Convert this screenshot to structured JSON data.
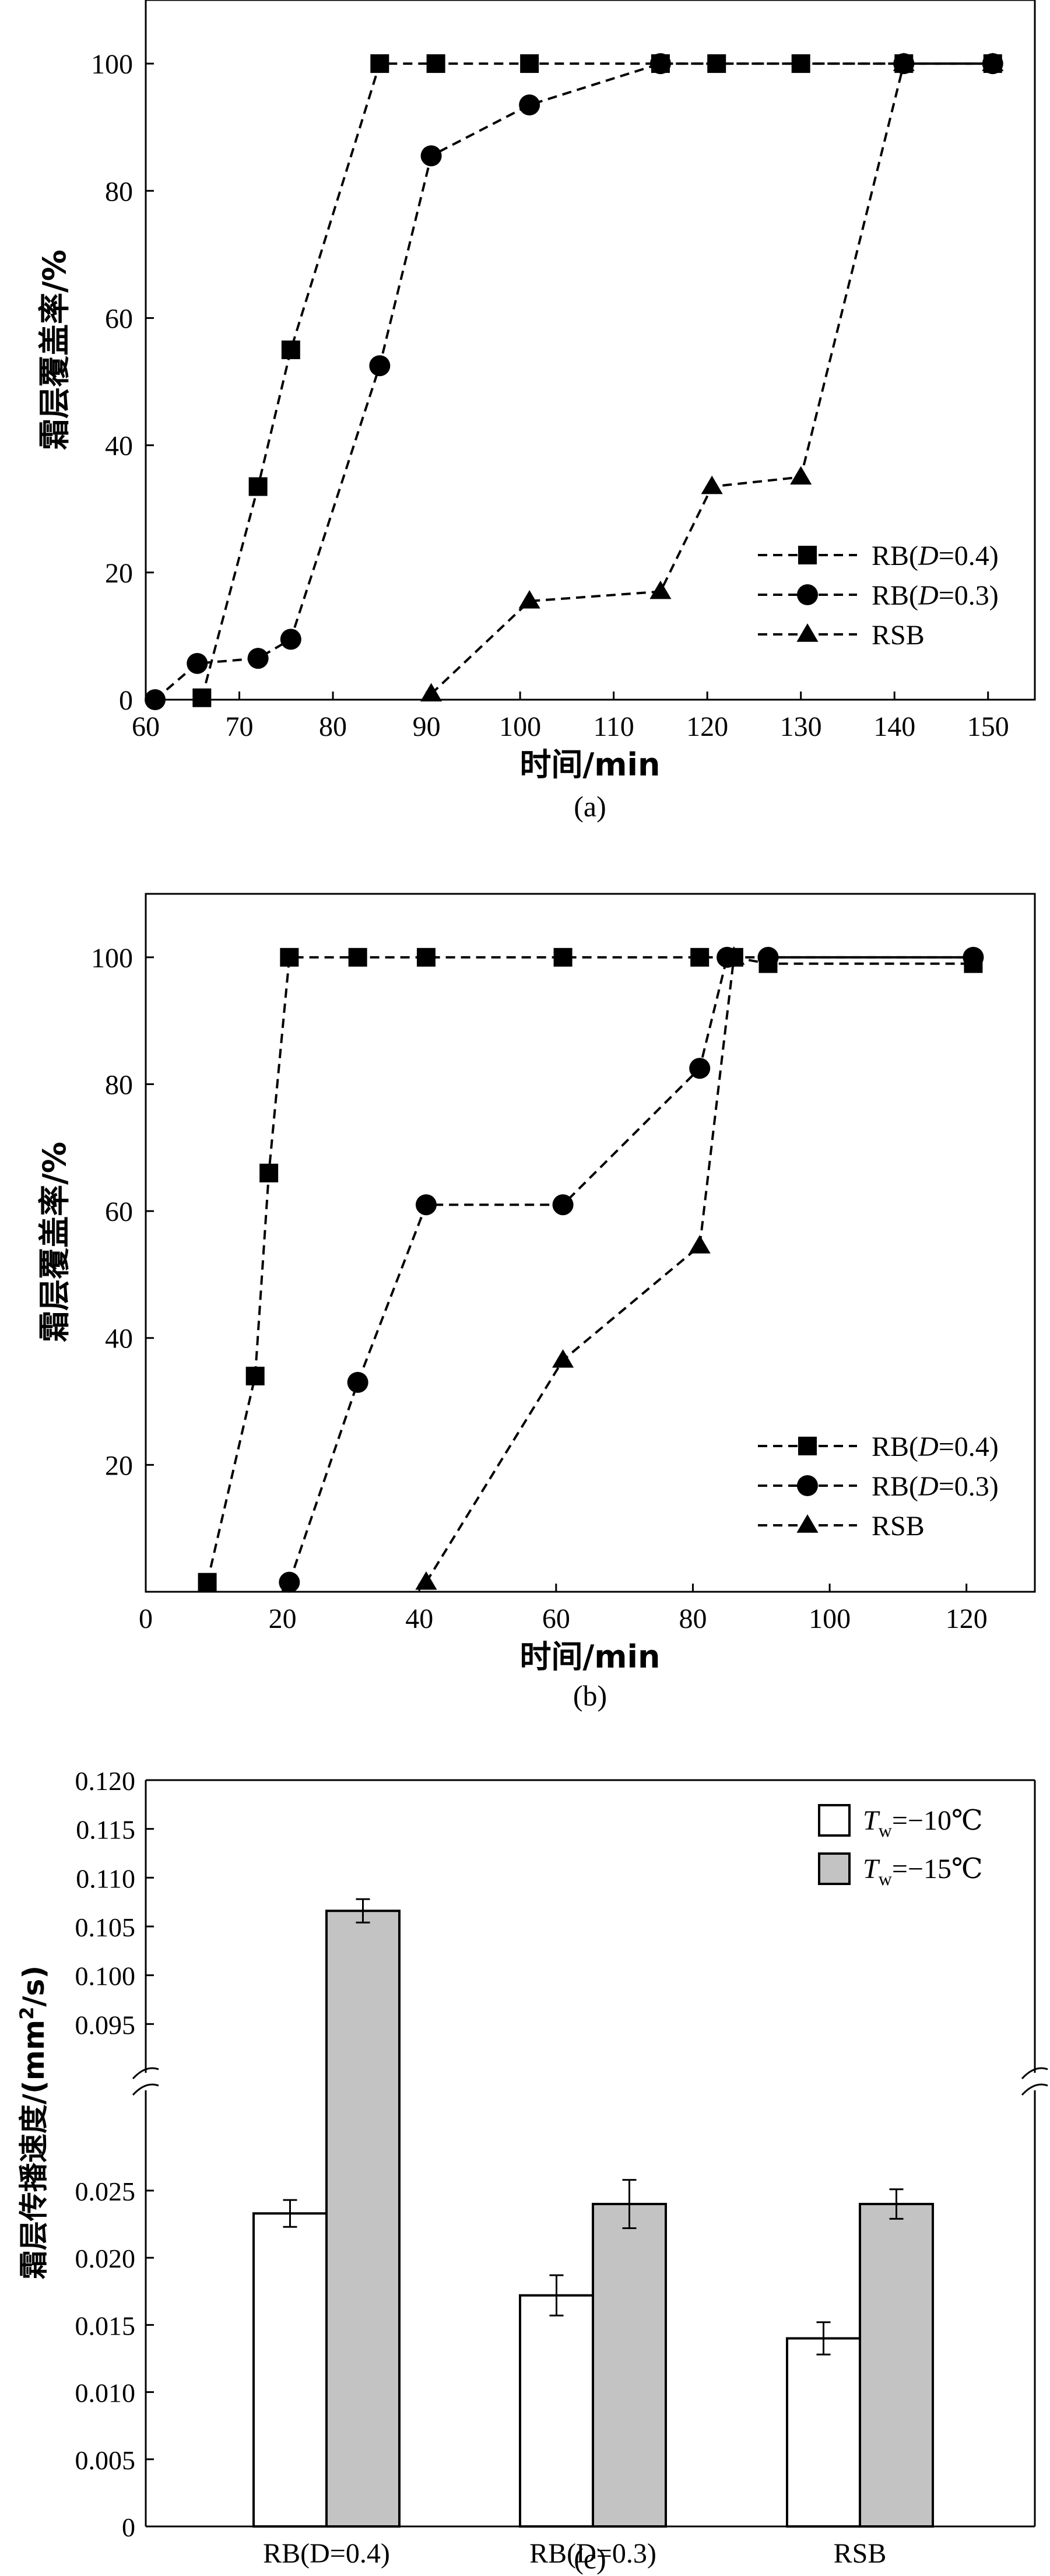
{
  "chart_data": [
    {
      "type": "line",
      "panel": "(a)",
      "xlabel": "时间/min",
      "ylabel": "霜层覆盖率/%",
      "xlim": [
        60,
        155
      ],
      "ylim": [
        0,
        110
      ],
      "xticks": [
        "60",
        "70",
        "80",
        "90",
        "100",
        "110",
        "120",
        "130",
        "140",
        "150"
      ],
      "yticks": [
        "0",
        "20",
        "40",
        "60",
        "80",
        "100"
      ],
      "legend_position": "bottom-right",
      "series": [
        {
          "name": "RB(D=0.4)",
          "marker": "square",
          "linestyle": "dashed",
          "x": [
            66,
            72,
            75.5,
            85,
            91,
            101,
            115,
            121,
            130,
            141,
            150.5
          ],
          "y": [
            0.3,
            33.5,
            55,
            100,
            100,
            100,
            100,
            100,
            100,
            100,
            100
          ]
        },
        {
          "name": "RB(D=0.3)",
          "marker": "circle",
          "linestyle": "dashed",
          "x": [
            61,
            65.5,
            72,
            75.5,
            85,
            90.5,
            101,
            115,
            141,
            150.5
          ],
          "y": [
            0,
            5.7,
            6.5,
            9.5,
            52.5,
            85.5,
            93.5,
            100,
            100,
            100
          ]
        },
        {
          "name": "RSB",
          "marker": "triangle",
          "linestyle": "dashed",
          "x": [
            90.5,
            101,
            115,
            120.5,
            130,
            141,
            150.5
          ],
          "y": [
            0.9,
            15.5,
            17,
            33.5,
            35,
            100,
            100
          ]
        }
      ]
    },
    {
      "type": "line",
      "panel": "(b)",
      "xlabel": "时间/min",
      "ylabel": "霜层覆盖率/%",
      "xlim": [
        0,
        130
      ],
      "ylim": [
        0,
        110
      ],
      "xticks": [
        "0",
        "20",
        "40",
        "60",
        "80",
        "100",
        "120"
      ],
      "yticks": [
        "20",
        "40",
        "60",
        "80",
        "100"
      ],
      "legend_position": "bottom-right",
      "series": [
        {
          "name": "RB(D=0.4)",
          "marker": "square",
          "linestyle": "dashed",
          "x": [
            9,
            16,
            18,
            21,
            31,
            41,
            61,
            81,
            86,
            91,
            121
          ],
          "y": [
            1.5,
            34,
            66,
            100,
            100,
            100,
            100,
            100,
            100,
            99,
            99
          ]
        },
        {
          "name": "RB(D=0.3)",
          "marker": "circle",
          "linestyle": "dashed",
          "x": [
            21,
            31,
            41,
            61,
            81,
            85,
            91,
            121
          ],
          "y": [
            1.5,
            33,
            61,
            61,
            82.5,
            100,
            100,
            100
          ]
        },
        {
          "name": "RSB",
          "marker": "triangle",
          "linestyle": "dashed",
          "x": [
            41,
            61,
            81,
            86
          ],
          "y": [
            1.5,
            36.5,
            54.5,
            100
          ]
        }
      ]
    },
    {
      "type": "bar",
      "panel": "(c)",
      "xlabel": "",
      "ylabel": "霜层传播速度/(mm²/s)",
      "categories": [
        "RB(D=0.4)",
        "RB(D=0.3)",
        "RSB"
      ],
      "yticks_lower": [
        "0",
        "0.005",
        "0.010",
        "0.015",
        "0.020",
        "0.025"
      ],
      "yticks_upper": [
        "0.095",
        "0.100",
        "0.105",
        "0.110",
        "0.115",
        "0.120"
      ],
      "axis_break": [
        0.03,
        0.09
      ],
      "legend_position": "top-right",
      "series": [
        {
          "name": "Tw=−10℃",
          "color": "#ffffff",
          "values": [
            0.0233,
            0.0172,
            0.014
          ],
          "errors": [
            0.001,
            0.0015,
            0.0012
          ]
        },
        {
          "name": "Tw=−15℃",
          "color": "#c3c3c3",
          "values": [
            0.1066,
            0.024,
            0.024
          ],
          "errors": [
            0.0012,
            0.0018,
            0.0011
          ]
        }
      ]
    }
  ],
  "legend_text": {
    "square": {
      "pre": "RB(",
      "var": "D",
      "post": "=0.4)"
    },
    "circle": {
      "pre": "RB(",
      "var": "D",
      "post": "=0.3)"
    },
    "triangle": {
      "pre": "RSB",
      "var": "",
      "post": ""
    },
    "tw10": {
      "var": "T",
      "sub": "w",
      "post": "=−10℃"
    },
    "tw15": {
      "var": "T",
      "sub": "w",
      "post": "=−15℃"
    }
  },
  "panel_labels": {
    "a": "(a)",
    "b": "(b)",
    "c": "(c)"
  },
  "ylabel_c": {
    "main": "霜层传播速度/(mm",
    "sup": "2",
    "tail": "/s)"
  }
}
